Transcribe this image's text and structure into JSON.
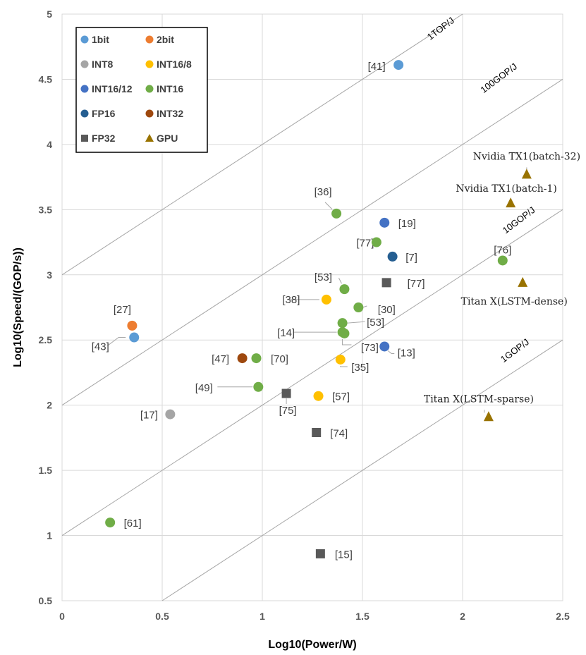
{
  "chart_data": {
    "type": "scatter",
    "xlabel": "Log10(Power/W)",
    "ylabel": "Log10(Speed/(GOP/s))",
    "xlim": [
      0,
      2.5
    ],
    "ylim": [
      0.5,
      5
    ],
    "xticks": [
      "0",
      "0.5",
      "1",
      "1.5",
      "2",
      "2.5"
    ],
    "yticks": [
      "0.5",
      "1",
      "1.5",
      "2",
      "2.5",
      "3",
      "3.5",
      "4",
      "4.5",
      "5"
    ],
    "grid": true,
    "legend_position": "top-left",
    "series": [
      {
        "name": "1bit",
        "marker": "circle",
        "color": "#5B9BD5",
        "points": [
          {
            "x": 1.68,
            "y": 4.61,
            "label": "[41]"
          },
          {
            "x": 0.36,
            "y": 2.52,
            "label": "[43]"
          }
        ]
      },
      {
        "name": "2bit",
        "marker": "circle",
        "color": "#ED7D31",
        "points": [
          {
            "x": 0.35,
            "y": 2.61,
            "label": "[27]"
          }
        ]
      },
      {
        "name": "INT8",
        "marker": "circle",
        "color": "#A5A5A5",
        "points": [
          {
            "x": 0.54,
            "y": 1.93,
            "label": "[17]"
          }
        ]
      },
      {
        "name": "INT16/8",
        "marker": "circle",
        "color": "#FFC000",
        "points": [
          {
            "x": 1.32,
            "y": 2.81,
            "label": "[38]"
          },
          {
            "x": 1.39,
            "y": 2.35,
            "label": "[35]"
          },
          {
            "x": 1.28,
            "y": 2.07,
            "label": "[57]"
          }
        ]
      },
      {
        "name": "INT16/12",
        "marker": "circle",
        "color": "#4472C4",
        "points": [
          {
            "x": 1.61,
            "y": 3.4,
            "label": "[19]"
          },
          {
            "x": 1.61,
            "y": 2.45,
            "label": "[13]"
          }
        ]
      },
      {
        "name": "INT16",
        "marker": "circle",
        "color": "#70AD47",
        "points": [
          {
            "x": 1.37,
            "y": 3.47,
            "label": "[36]"
          },
          {
            "x": 1.57,
            "y": 3.25,
            "label": "[77]"
          },
          {
            "x": 1.41,
            "y": 2.89,
            "label": "[53]"
          },
          {
            "x": 1.48,
            "y": 2.75,
            "label": "[30]"
          },
          {
            "x": 1.4,
            "y": 2.63,
            "label": "[53]"
          },
          {
            "x": 1.4,
            "y": 2.56,
            "label": "[14]"
          },
          {
            "x": 1.41,
            "y": 2.55,
            "label": "[73]"
          },
          {
            "x": 0.97,
            "y": 2.36,
            "label": "[70]"
          },
          {
            "x": 0.98,
            "y": 2.14,
            "label": "[49]"
          },
          {
            "x": 0.24,
            "y": 1.1,
            "label": "[61]"
          },
          {
            "x": 2.2,
            "y": 3.11,
            "label": "[76]"
          }
        ]
      },
      {
        "name": "FP16",
        "marker": "circle",
        "color": "#255E91",
        "points": [
          {
            "x": 1.65,
            "y": 3.14,
            "label": "[7]"
          }
        ]
      },
      {
        "name": "INT32",
        "marker": "circle",
        "color": "#9E480E",
        "points": [
          {
            "x": 0.9,
            "y": 2.36,
            "label": "[47]"
          }
        ]
      },
      {
        "name": "FP32",
        "marker": "square",
        "color": "#595959",
        "points": [
          {
            "x": 1.62,
            "y": 2.94,
            "label": "[77]"
          },
          {
            "x": 1.12,
            "y": 2.09,
            "label": "[75]"
          },
          {
            "x": 1.27,
            "y": 1.79,
            "label": "[74]"
          },
          {
            "x": 1.29,
            "y": 0.86,
            "label": "[15]"
          }
        ]
      },
      {
        "name": "GPU",
        "marker": "triangle",
        "color": "#997300",
        "points": [
          {
            "x": 2.32,
            "y": 3.77,
            "label": "Nvidia TX1(batch-32)"
          },
          {
            "x": 2.24,
            "y": 3.55,
            "label": "Nvidia TX1(batch-1)"
          },
          {
            "x": 2.3,
            "y": 2.94,
            "label": "Titan X(LSTM-dense)"
          },
          {
            "x": 2.13,
            "y": 1.91,
            "label": "Titan X(LSTM-sparse)"
          }
        ]
      }
    ],
    "efficiency_lines": [
      {
        "label": "1TOP/J",
        "offset": 3
      },
      {
        "label": "100GOP/J",
        "offset": 2
      },
      {
        "label": "10GOP/J",
        "offset": 1
      },
      {
        "label": "1GOP/J",
        "offset": 0
      }
    ]
  }
}
